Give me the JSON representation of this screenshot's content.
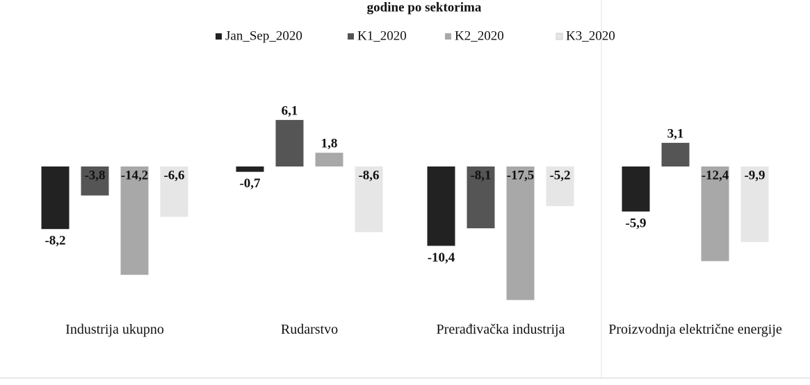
{
  "chart_data": {
    "type": "bar",
    "title": "godine po sektorima",
    "categories": [
      "Industrija ukupno",
      "Rudarstvo",
      "Prerađivačka industrija",
      "Proizvodnja električne energije"
    ],
    "legend": "top",
    "series": [
      {
        "name": "Jan_Sep_2020",
        "color": "#222222",
        "values": [
          -8.2,
          -0.7,
          -10.4,
          -5.9
        ],
        "value_labels": [
          "-8,2",
          "-0,7",
          "-10,4",
          "-5,9"
        ]
      },
      {
        "name": "K1_2020",
        "color": "#555555",
        "values": [
          -3.8,
          6.1,
          -8.1,
          3.1
        ],
        "value_labels": [
          "-3,8",
          "6,1",
          "-8,1",
          "3,1"
        ]
      },
      {
        "name": "K2_2020",
        "color": "#a8a8a8",
        "values": [
          -14.2,
          1.8,
          -17.5,
          -12.4
        ],
        "value_labels": [
          "-14,2",
          "1,8",
          "-17,5",
          "-12,4"
        ]
      },
      {
        "name": "K3_2020",
        "color": "#e6e6e6",
        "values": [
          -6.6,
          -8.6,
          -5.2,
          -9.9
        ],
        "value_labels": [
          "-6,6",
          "-8,6",
          "-5,2",
          "-9,9"
        ]
      }
    ]
  }
}
